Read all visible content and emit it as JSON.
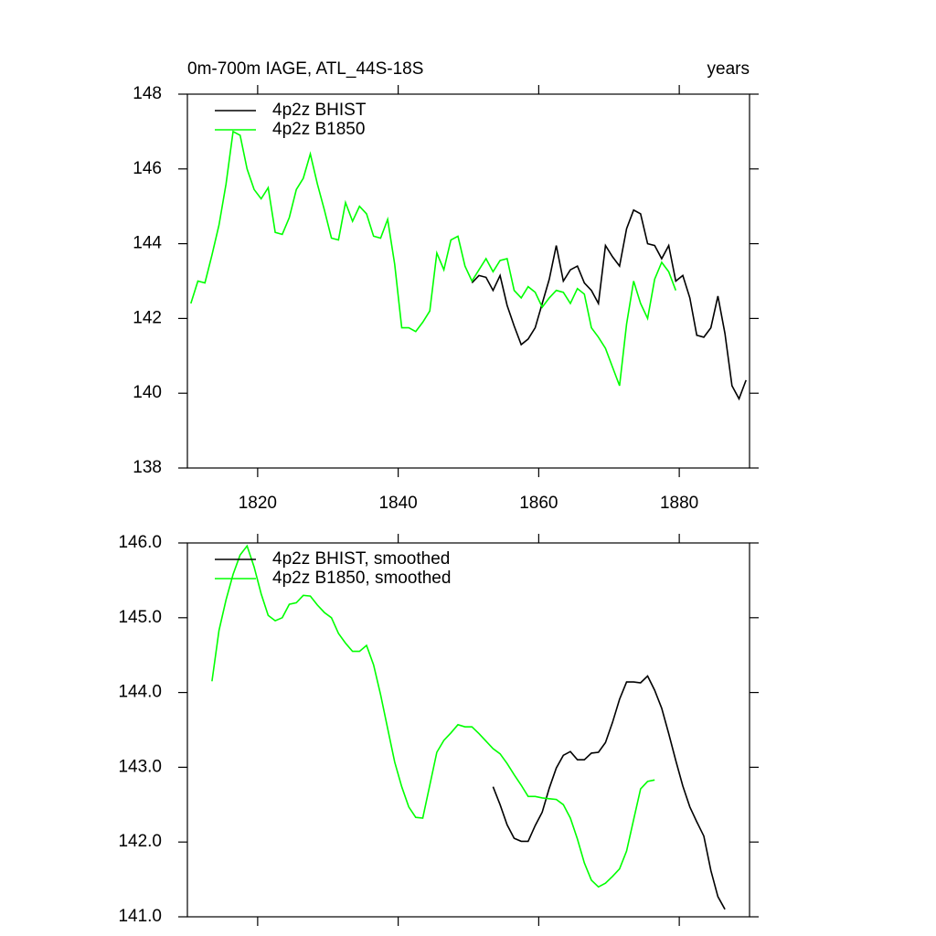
{
  "chart_data": [
    {
      "type": "line",
      "title": "0m-700m IAGE, ATL_44S-18S",
      "title_right": "years",
      "xlim": [
        1810,
        1890
      ],
      "xticks": [
        1820,
        1840,
        1860,
        1880
      ],
      "ylim": [
        138,
        148
      ],
      "yticks": [
        138,
        140,
        142,
        144,
        146,
        148
      ],
      "legend": "upper left",
      "series": [
        {
          "name": "4p2z BHIST",
          "color": "#000000",
          "x": [
            1850.5,
            1851.5,
            1852.5,
            1853.5,
            1854.5,
            1855.5,
            1856.5,
            1857.5,
            1858.5,
            1859.5,
            1860.5,
            1861.5,
            1862.5,
            1863.5,
            1864.5,
            1865.5,
            1866.5,
            1867.5,
            1868.5,
            1869.5,
            1870.5,
            1871.5,
            1872.5,
            1873.5,
            1874.5,
            1875.5,
            1876.5,
            1877.5,
            1878.5,
            1879.5,
            1880.5,
            1881.5,
            1882.5,
            1883.5,
            1884.5,
            1885.5,
            1886.5,
            1887.5,
            1888.5,
            1889.5
          ],
          "values": [
            142.95,
            143.15,
            143.1,
            142.75,
            143.15,
            142.35,
            141.8,
            141.3,
            141.45,
            141.75,
            142.4,
            143.05,
            143.95,
            143.0,
            143.3,
            143.4,
            142.95,
            142.75,
            142.4,
            143.95,
            143.65,
            143.4,
            144.4,
            144.9,
            144.8,
            144.0,
            143.95,
            143.6,
            143.95,
            143.0,
            143.15,
            142.55,
            141.55,
            141.5,
            141.75,
            142.6,
            141.6,
            140.2,
            139.85,
            140.35
          ]
        },
        {
          "name": "4p2z B1850",
          "color": "#00ff00",
          "x": [
            1810.5,
            1811.5,
            1812.5,
            1813.5,
            1814.5,
            1815.5,
            1816.5,
            1817.5,
            1818.5,
            1819.5,
            1820.5,
            1821.5,
            1822.5,
            1823.5,
            1824.5,
            1825.5,
            1826.5,
            1827.5,
            1828.5,
            1829.5,
            1830.5,
            1831.5,
            1832.5,
            1833.5,
            1834.5,
            1835.5,
            1836.5,
            1837.5,
            1838.5,
            1839.5,
            1840.5,
            1841.5,
            1842.5,
            1843.5,
            1844.5,
            1845.5,
            1846.5,
            1847.5,
            1848.5,
            1849.5,
            1850.5,
            1851.5,
            1852.5,
            1853.5,
            1854.5,
            1855.5,
            1856.5,
            1857.5,
            1858.5,
            1859.5,
            1860.5,
            1861.5,
            1862.5,
            1863.5,
            1864.5,
            1865.5,
            1866.5,
            1867.5,
            1868.5,
            1869.5,
            1870.5,
            1871.5,
            1872.5,
            1873.5,
            1874.5,
            1875.5,
            1876.5,
            1877.5,
            1878.5,
            1879.5
          ],
          "values": [
            142.4,
            143.0,
            142.95,
            143.7,
            144.5,
            145.6,
            147.0,
            146.9,
            146.0,
            145.45,
            145.2,
            145.5,
            144.3,
            144.25,
            144.7,
            145.45,
            145.75,
            146.4,
            145.6,
            144.9,
            144.15,
            144.1,
            145.1,
            144.6,
            145.0,
            144.8,
            144.2,
            144.15,
            144.65,
            143.45,
            141.75,
            141.75,
            141.65,
            141.9,
            142.2,
            143.75,
            143.3,
            144.1,
            144.2,
            143.4,
            143.0,
            143.3,
            143.6,
            143.25,
            143.55,
            143.6,
            142.75,
            142.55,
            142.85,
            142.7,
            142.3,
            142.55,
            142.75,
            142.7,
            142.4,
            142.8,
            142.65,
            141.75,
            141.5,
            141.2,
            140.7,
            140.2,
            141.85,
            143.0,
            142.4,
            142.0,
            143.05,
            143.5,
            143.25,
            142.75
          ]
        }
      ]
    },
    {
      "type": "line",
      "xlim": [
        1810,
        1890
      ],
      "ylim": [
        141,
        146
      ],
      "yticks": [
        {
          "value": 141,
          "label": "141.0"
        },
        {
          "value": 142,
          "label": "142.0"
        },
        {
          "value": 143,
          "label": "143.0"
        },
        {
          "value": 144,
          "label": "144.0"
        },
        {
          "value": 145,
          "label": "145.0"
        },
        {
          "value": 146,
          "label": "146.0"
        }
      ],
      "legend": "upper left",
      "series": [
        {
          "name": "4p2z BHIST, smoothed",
          "color": "#000000",
          "x": [
            1853.5,
            1854.5,
            1855.5,
            1856.5,
            1857.5,
            1858.5,
            1859.5,
            1860.5,
            1861.5,
            1862.5,
            1863.5,
            1864.5,
            1865.5,
            1866.5,
            1867.5,
            1868.5,
            1869.5,
            1870.5,
            1871.5,
            1872.5,
            1873.5,
            1874.5,
            1875.5,
            1876.5,
            1877.5,
            1878.5,
            1879.5,
            1880.5,
            1881.5,
            1882.5,
            1883.5,
            1884.5,
            1885.5,
            1886.5
          ],
          "values": [
            142.74,
            142.5,
            142.23,
            142.05,
            142.01,
            142.01,
            142.22,
            142.4,
            142.72,
            142.99,
            143.16,
            143.21,
            143.1,
            143.1,
            143.19,
            143.2,
            143.33,
            143.6,
            143.91,
            144.14,
            144.14,
            144.13,
            144.22,
            144.03,
            143.79,
            143.45,
            143.09,
            142.75,
            142.47,
            142.27,
            142.08,
            141.62,
            141.27,
            141.1
          ]
        },
        {
          "name": "4p2z B1850, smoothed",
          "color": "#00ff00",
          "x": [
            1813.5,
            1814.5,
            1815.5,
            1816.5,
            1817.5,
            1818.5,
            1819.5,
            1820.5,
            1821.5,
            1822.5,
            1823.5,
            1824.5,
            1825.5,
            1826.5,
            1827.5,
            1828.5,
            1829.5,
            1830.5,
            1831.5,
            1832.5,
            1833.5,
            1834.5,
            1835.5,
            1836.5,
            1837.5,
            1838.5,
            1839.5,
            1840.5,
            1841.5,
            1842.5,
            1843.5,
            1844.5,
            1845.5,
            1846.5,
            1847.5,
            1848.5,
            1849.5,
            1850.5,
            1851.5,
            1852.5,
            1853.5,
            1854.5,
            1855.5,
            1856.5,
            1857.5,
            1858.5,
            1859.5,
            1860.5,
            1861.5,
            1862.5,
            1863.5,
            1864.5,
            1865.5,
            1866.5,
            1867.5,
            1868.5,
            1869.5,
            1870.5,
            1871.5,
            1872.5,
            1873.5,
            1874.5,
            1875.5,
            1876.5
          ],
          "values": [
            144.15,
            144.83,
            145.24,
            145.58,
            145.84,
            145.96,
            145.68,
            145.32,
            145.03,
            144.96,
            145.0,
            145.18,
            145.2,
            145.3,
            145.29,
            145.17,
            145.07,
            145.0,
            144.79,
            144.66,
            144.55,
            144.55,
            144.63,
            144.37,
            143.97,
            143.52,
            143.07,
            142.74,
            142.47,
            142.33,
            142.32,
            142.76,
            143.2,
            143.36,
            143.46,
            143.57,
            143.54,
            143.54,
            143.45,
            143.35,
            143.25,
            143.18,
            143.05,
            142.9,
            142.76,
            142.61,
            142.61,
            142.59,
            142.58,
            142.57,
            142.5,
            142.32,
            142.04,
            141.72,
            141.49,
            141.4,
            141.45,
            141.54,
            141.64,
            141.88,
            142.3,
            142.71,
            142.81,
            142.83
          ]
        }
      ]
    }
  ]
}
